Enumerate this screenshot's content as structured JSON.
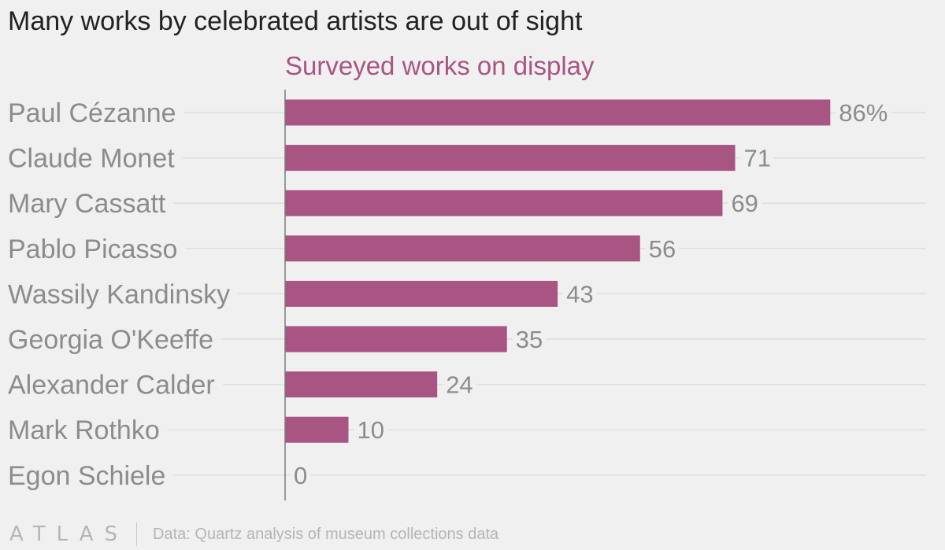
{
  "title": "Many works by celebrated artists are out of sight",
  "footer": {
    "logo": "ATLAS",
    "source": "Data: Quartz analysis of museum collections data"
  },
  "colors": {
    "bar": "#a85584",
    "series_label": "#a85584",
    "category_label": "#8c8c8c",
    "value_label": "#8c8c8c",
    "gridline": "#dedede",
    "baseline": "#7a7a7a"
  },
  "chart_data": {
    "type": "bar",
    "orientation": "horizontal",
    "categories": [
      "Paul Cézanne",
      "Claude Monet",
      "Mary Cassatt",
      "Pablo Picasso",
      "Wassily Kandinsky",
      "Georgia O'Keeffe",
      "Alexander Calder",
      "Mark Rothko",
      "Egon Schiele"
    ],
    "series": [
      {
        "name": "Surveyed works on display",
        "values": [
          86,
          71,
          69,
          56,
          43,
          35,
          24,
          10,
          0
        ]
      }
    ],
    "value_labels": [
      "86%",
      "71",
      "69",
      "56",
      "43",
      "35",
      "24",
      "10",
      "0"
    ],
    "xlim": [
      0,
      100
    ],
    "grid": true,
    "legend": "top"
  }
}
